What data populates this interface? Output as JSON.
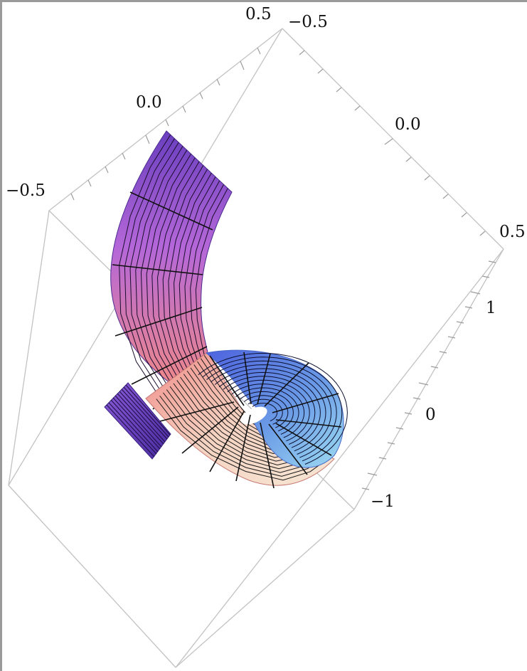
{
  "chart_data": {
    "type": "surface-3d",
    "title": "",
    "description_free": true,
    "surface": {
      "shape": "spiral-ribbon",
      "colors": {
        "purple": "#6a3fbf",
        "magenta": "#b567d8",
        "salmon": "#f28a85",
        "cream": "#f3dcc8",
        "blue": "#5b6fe0",
        "cyan": "#8fd3ef"
      },
      "mesh_color": "#000000"
    },
    "axes": [
      {
        "name": "",
        "ticks": [
          "−0.5",
          "0.0",
          "0.5"
        ],
        "range": [
          -0.5,
          0.5
        ]
      },
      {
        "name": "",
        "ticks": [
          "−0.5",
          "0.0",
          "0.5"
        ],
        "range": [
          -0.5,
          0.5
        ]
      },
      {
        "name": "",
        "ticks": [
          "−1",
          "0",
          "1"
        ],
        "range": [
          -1.2,
          1.2
        ]
      }
    ],
    "box": true,
    "grid": false,
    "legend": "none"
  }
}
